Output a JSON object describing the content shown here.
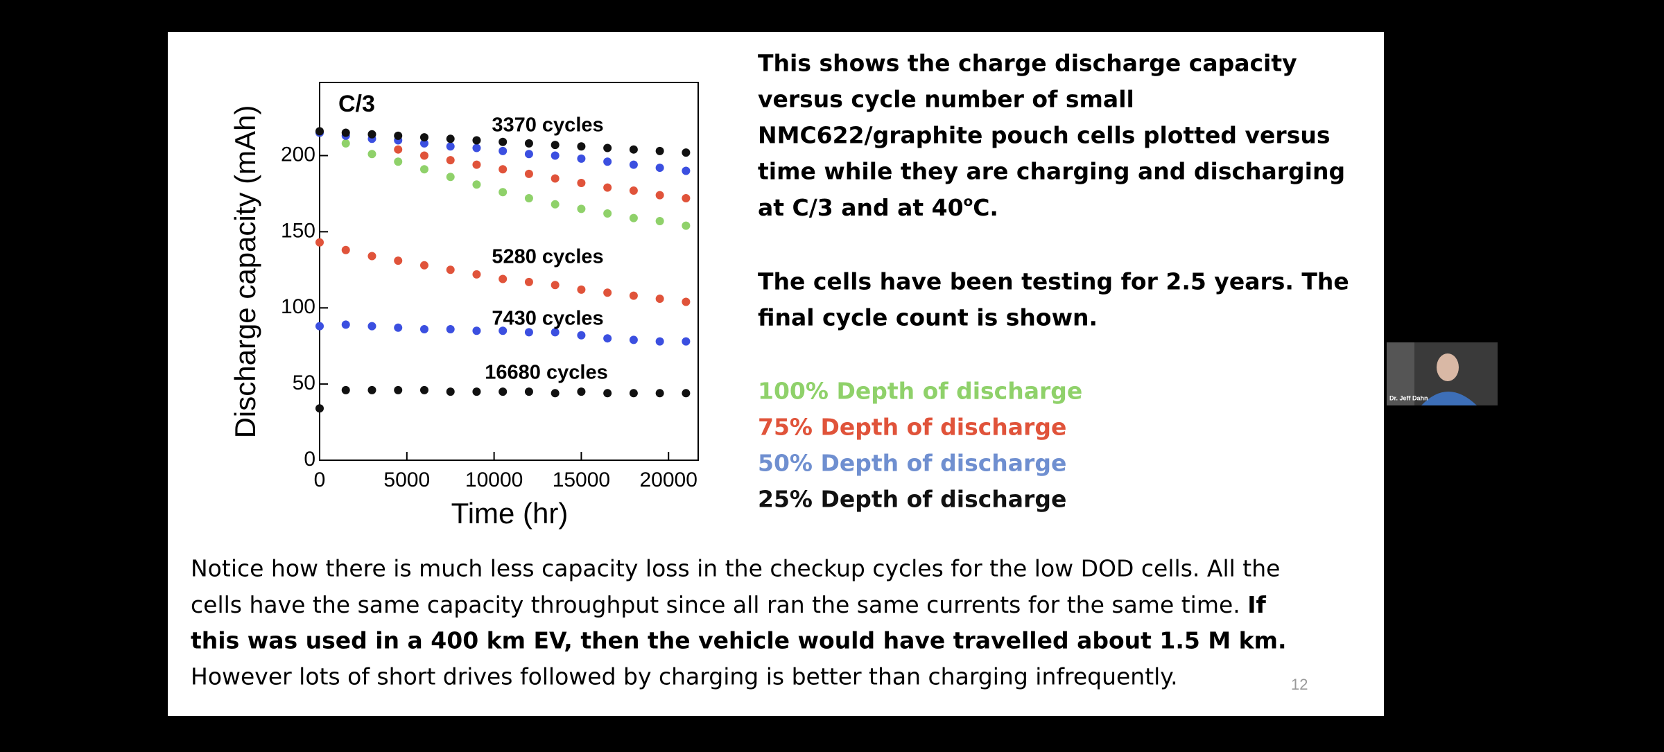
{
  "chart_data": {
    "type": "scatter",
    "title": "C/3",
    "x_label": "Time (hr)",
    "y_label": "Discharge capacity (mAh)",
    "x": [
      0,
      1500,
      3000,
      4500,
      6000,
      7500,
      9000,
      10500,
      12000,
      13500,
      15000,
      16500,
      18000,
      19500,
      21000
    ],
    "series": [
      {
        "name": "100% Depth of discharge",
        "color": "#8fd16a",
        "values": [
          215,
          208,
          201,
          196,
          191,
          186,
          181,
          176,
          172,
          168,
          165,
          162,
          159,
          157,
          154
        ]
      },
      {
        "color": "#e0533a",
        "values": [
          null,
          null,
          null,
          204,
          200,
          197,
          194,
          191,
          188,
          185,
          182,
          179,
          177,
          174,
          172
        ]
      },
      {
        "name": "75% Depth of discharge",
        "color": "#e0533a",
        "values": [
          143,
          138,
          134,
          131,
          128,
          125,
          122,
          119,
          117,
          115,
          112,
          110,
          108,
          106,
          104
        ]
      },
      {
        "color": "#3b4fe0",
        "values": [
          215,
          213,
          211,
          210,
          208,
          206,
          205,
          203,
          201,
          200,
          198,
          196,
          194,
          192,
          190
        ]
      },
      {
        "name": "50% Depth of discharge",
        "color": "#3b4fe0",
        "values": [
          88,
          89,
          88,
          87,
          86,
          86,
          85,
          85,
          84,
          84,
          82,
          80,
          79,
          78,
          78
        ]
      },
      {
        "color": "#111111",
        "values": [
          216,
          215,
          214,
          213,
          212,
          211,
          210,
          209,
          208,
          207,
          206,
          205,
          204,
          203,
          202
        ]
      },
      {
        "name": "25% Depth of discharge",
        "color": "#111111",
        "values": [
          34,
          46,
          46,
          46,
          46,
          45,
          45,
          45,
          45,
          44,
          45,
          44,
          44,
          44,
          44
        ]
      }
    ],
    "legend_colors": [
      "#8fd16a",
      "#e0533a",
      "#6f8fd0",
      "#111111"
    ],
    "annotations": [
      "3370 cycles",
      "5280 cycles",
      "7430 cycles",
      "16680 cycles"
    ],
    "xlim": [
      0,
      21700
    ],
    "ylim": [
      0,
      248
    ],
    "xticks": [
      0,
      5000,
      10000,
      15000,
      20000
    ],
    "yticks": [
      0,
      50,
      100,
      150,
      200
    ]
  },
  "slide": {
    "description": [
      "This shows the charge discharge capacity",
      "versus cycle number of small",
      "NMC622/graphite pouch cells plotted versus",
      "time while they are charging and discharging",
      [
        "at C/3 and at 40",
        "o",
        "C."
      ]
    ],
    "note": [
      "The cells have been testing for 2.5 years.  The",
      "final cycle count is shown."
    ],
    "footer": [
      "Notice how there is much less capacity loss in the checkup cycles for the low DOD cells.  All the",
      [
        "cells have the same capacity throughput since all ran the same currents for the same time.  ",
        "If"
      ],
      "this was used in a 400 km EV, then the vehicle would have travelled about 1.5 M km.",
      "However lots of short drives followed by charging is better than charging infrequently."
    ],
    "page_number": "12"
  },
  "video": {
    "participant_name": "Dr. Jeff Dahn"
  }
}
